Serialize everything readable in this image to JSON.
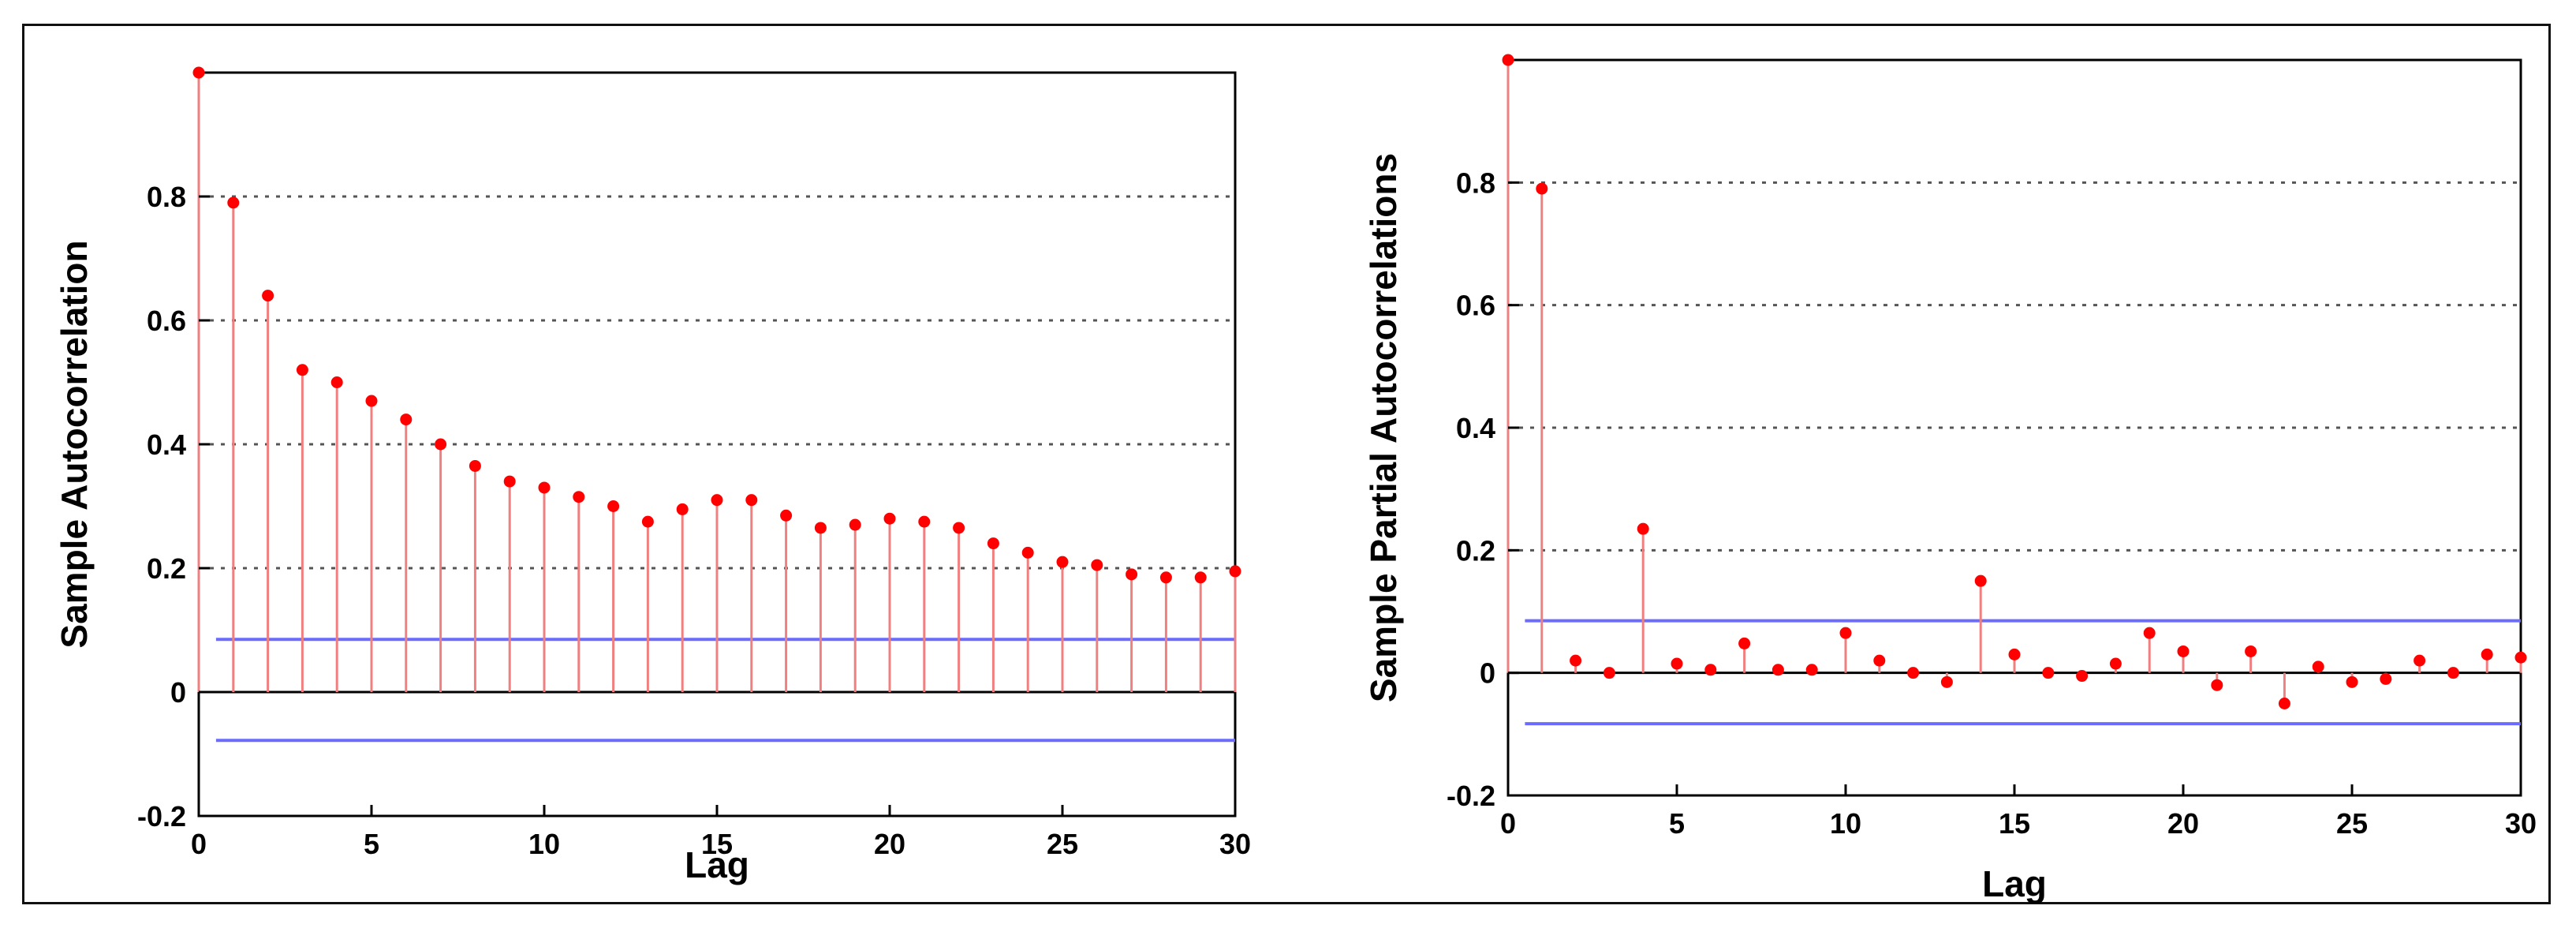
{
  "chart_data": [
    {
      "type": "stem",
      "xlabel": "Lag",
      "ylabel": "Sample Autocorrelation",
      "xlim": [
        0,
        30
      ],
      "ylim": [
        -0.2,
        1.0
      ],
      "xticks": [
        0,
        5,
        10,
        15,
        20,
        25,
        30
      ],
      "yticks": [
        -0.2,
        0,
        0.2,
        0.4,
        0.6,
        0.8
      ],
      "ytick_labels": [
        "-0.2",
        "0",
        "0.2",
        "0.4",
        "0.6",
        "0.8"
      ],
      "grid": "horizontal-dotted",
      "confidence_bounds": [
        0.085,
        -0.078
      ],
      "x": [
        0,
        1,
        2,
        3,
        4,
        5,
        6,
        7,
        8,
        9,
        10,
        11,
        12,
        13,
        14,
        15,
        16,
        17,
        18,
        19,
        20,
        21,
        22,
        23,
        24,
        25,
        26,
        27,
        28,
        29,
        30
      ],
      "values": [
        1.0,
        0.79,
        0.64,
        0.52,
        0.5,
        0.47,
        0.44,
        0.4,
        0.365,
        0.34,
        0.33,
        0.315,
        0.3,
        0.275,
        0.295,
        0.31,
        0.31,
        0.285,
        0.265,
        0.27,
        0.28,
        0.275,
        0.265,
        0.24,
        0.225,
        0.21,
        0.205,
        0.19,
        0.185,
        0.185,
        0.195
      ],
      "colors": {
        "stem": "#f08080",
        "marker": "#ff0000",
        "bounds": "#6b6bff",
        "zero": "#000000",
        "grid": "#555555"
      }
    },
    {
      "type": "stem",
      "xlabel": "Lag",
      "ylabel": "Sample Partial Autocorrelations",
      "xlim": [
        0,
        30
      ],
      "ylim": [
        -0.2,
        1.0
      ],
      "xticks": [
        0,
        5,
        10,
        15,
        20,
        25,
        30
      ],
      "yticks": [
        -0.2,
        0,
        0.2,
        0.4,
        0.6,
        0.8
      ],
      "ytick_labels": [
        "-0.2",
        "0",
        "0.2",
        "0.4",
        "0.6",
        "0.8"
      ],
      "grid": "horizontal-dotted",
      "confidence_bounds": [
        0.085,
        -0.083
      ],
      "x": [
        0,
        1,
        2,
        3,
        4,
        5,
        6,
        7,
        8,
        9,
        10,
        11,
        12,
        13,
        14,
        15,
        16,
        17,
        18,
        19,
        20,
        21,
        22,
        23,
        24,
        25,
        26,
        27,
        28,
        29,
        30
      ],
      "values": [
        1.0,
        0.79,
        0.02,
        0.0,
        0.235,
        0.015,
        0.005,
        0.048,
        0.005,
        0.005,
        0.065,
        0.02,
        0.0,
        -0.015,
        0.15,
        0.03,
        0.0,
        -0.005,
        0.015,
        0.065,
        0.035,
        -0.02,
        0.035,
        -0.05,
        0.01,
        -0.015,
        -0.01,
        0.02,
        0.0,
        0.03,
        0.025
      ],
      "colors": {
        "stem": "#f08080",
        "marker": "#ff0000",
        "bounds": "#6b6bff",
        "zero": "#000000",
        "grid": "#555555"
      }
    }
  ]
}
